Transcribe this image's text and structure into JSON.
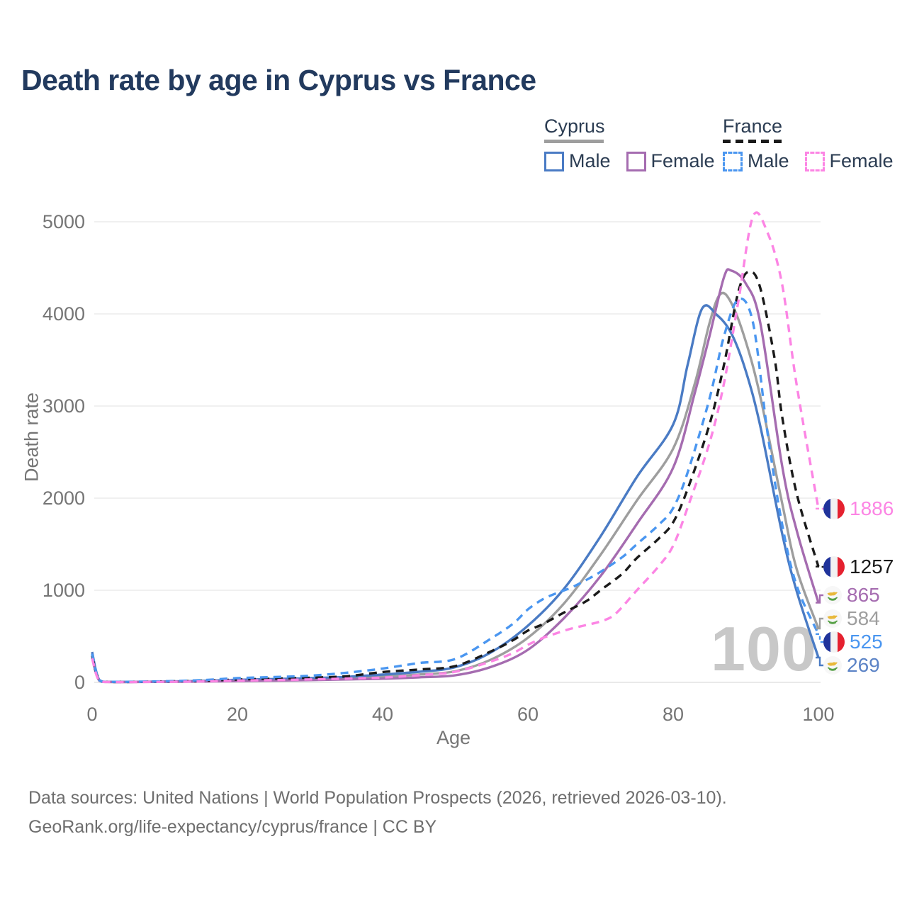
{
  "title": "Death rate by age in Cyprus vs France",
  "watermark": "100",
  "legend": {
    "groups": [
      {
        "label": "Cyprus",
        "underline_color": "#9e9e9e",
        "underline_dashed": false,
        "items": [
          {
            "label": "Male",
            "color": "#4a7bc4",
            "dashed": false
          },
          {
            "label": "Female",
            "color": "#a56cb0",
            "dashed": false
          }
        ]
      },
      {
        "label": "France",
        "underline_color": "#1a1a1a",
        "underline_dashed": true,
        "items": [
          {
            "label": "Male",
            "color": "#4a96f0",
            "dashed": true
          },
          {
            "label": "Female",
            "color": "#fc85e4",
            "dashed": true
          }
        ]
      }
    ]
  },
  "axes": {
    "x": {
      "label": "Age",
      "ticks": [
        0,
        20,
        40,
        60,
        80,
        100
      ],
      "range": [
        0,
        100
      ]
    },
    "y": {
      "label": "Death rate",
      "ticks": [
        0,
        1000,
        2000,
        3000,
        4000,
        5000
      ],
      "range": [
        0,
        5000
      ]
    }
  },
  "end_labels": [
    {
      "value": "1886",
      "flag": "france",
      "color": "#fc85e4",
      "series": "france-female"
    },
    {
      "value": "1257",
      "flag": "france",
      "color": "#1a1a1a",
      "series": "france-both"
    },
    {
      "value": "865",
      "flag": "cyprus",
      "color": "#a56cb0",
      "series": "cyprus-female"
    },
    {
      "value": "584",
      "flag": "cyprus",
      "color": "#9e9e9e",
      "series": "cyprus-both"
    },
    {
      "value": "525",
      "flag": "france",
      "color": "#4a96f0",
      "series": "france-male"
    },
    {
      "value": "269",
      "flag": "cyprus",
      "color": "#5b83c6",
      "series": "cyprus-male"
    }
  ],
  "footer": {
    "line1": "Data sources: United Nations | World Population Prospects (2026, retrieved 2026-03-10).",
    "line2": "GeoRank.org/life-expectancy/cyprus/france | CC BY"
  },
  "chart_data": {
    "type": "line",
    "title": "Death rate by age in Cyprus vs France",
    "xlabel": "Age",
    "ylabel": "Death rate",
    "xlim": [
      0,
      100
    ],
    "ylim": [
      0,
      5000
    ],
    "grid": "horizontal",
    "legend_position": "top-right",
    "series": [
      {
        "name": "Cyprus Both sexes",
        "id": "cyprus-both",
        "color": "#9e9e9e",
        "dashed": false,
        "end_value": 584,
        "points": [
          [
            0,
            300
          ],
          [
            1,
            21
          ],
          [
            3,
            5
          ],
          [
            10,
            8
          ],
          [
            15,
            12
          ],
          [
            20,
            21
          ],
          [
            25,
            28
          ],
          [
            30,
            35
          ],
          [
            35,
            46
          ],
          [
            40,
            62
          ],
          [
            45,
            85
          ],
          [
            50,
            121
          ],
          [
            55,
            250
          ],
          [
            60,
            485
          ],
          [
            65,
            860
          ],
          [
            70,
            1385
          ],
          [
            75,
            1975
          ],
          [
            80,
            2538
          ],
          [
            83,
            3250
          ],
          [
            85,
            3900
          ],
          [
            86.5,
            4215
          ],
          [
            88,
            4120
          ],
          [
            90,
            3700
          ],
          [
            92,
            3100
          ],
          [
            95,
            1946
          ],
          [
            97,
            1230
          ],
          [
            100,
            584
          ]
        ]
      },
      {
        "name": "Cyprus Male",
        "id": "cyprus-male",
        "color": "#4a7bc4",
        "dashed": false,
        "end_value": 269,
        "points": [
          [
            0,
            330
          ],
          [
            1,
            25
          ],
          [
            3,
            6
          ],
          [
            10,
            9
          ],
          [
            15,
            16
          ],
          [
            20,
            28
          ],
          [
            25,
            36
          ],
          [
            30,
            45
          ],
          [
            35,
            60
          ],
          [
            40,
            85
          ],
          [
            45,
            115
          ],
          [
            50,
            165
          ],
          [
            55,
            330
          ],
          [
            60,
            615
          ],
          [
            65,
            1020
          ],
          [
            70,
            1585
          ],
          [
            75,
            2230
          ],
          [
            80,
            2800
          ],
          [
            82,
            3450
          ],
          [
            84,
            4060
          ],
          [
            86,
            3990
          ],
          [
            88,
            3790
          ],
          [
            90,
            3380
          ],
          [
            92,
            2780
          ],
          [
            95,
            1615
          ],
          [
            97,
            990
          ],
          [
            100,
            269
          ]
        ]
      },
      {
        "name": "Cyprus Female",
        "id": "cyprus-female",
        "color": "#a56cb0",
        "dashed": false,
        "end_value": 865,
        "points": [
          [
            0,
            270
          ],
          [
            1,
            18
          ],
          [
            3,
            4
          ],
          [
            10,
            6
          ],
          [
            15,
            9
          ],
          [
            20,
            14
          ],
          [
            25,
            19
          ],
          [
            30,
            25
          ],
          [
            35,
            32
          ],
          [
            40,
            40
          ],
          [
            45,
            55
          ],
          [
            50,
            77
          ],
          [
            55,
            170
          ],
          [
            60,
            354
          ],
          [
            65,
            700
          ],
          [
            70,
            1154
          ],
          [
            75,
            1720
          ],
          [
            80,
            2331
          ],
          [
            83,
            3150
          ],
          [
            85,
            3760
          ],
          [
            87,
            4400
          ],
          [
            88,
            4470
          ],
          [
            90,
            4330
          ],
          [
            92,
            3900
          ],
          [
            95,
            2350
          ],
          [
            97,
            1650
          ],
          [
            100,
            865
          ]
        ]
      },
      {
        "name": "France Both sexes",
        "id": "france-both",
        "color": "#1a1a1a",
        "dashed": true,
        "end_value": 1257,
        "points": [
          [
            0,
            290
          ],
          [
            1,
            20
          ],
          [
            3,
            5
          ],
          [
            10,
            10
          ],
          [
            15,
            17
          ],
          [
            20,
            31
          ],
          [
            25,
            40
          ],
          [
            30,
            51
          ],
          [
            35,
            66
          ],
          [
            40,
            112
          ],
          [
            45,
            140
          ],
          [
            50,
            177
          ],
          [
            55,
            340
          ],
          [
            58,
            460
          ],
          [
            60,
            562
          ],
          [
            62,
            630
          ],
          [
            65,
            760
          ],
          [
            68,
            880
          ],
          [
            70,
            1000
          ],
          [
            73,
            1180
          ],
          [
            75,
            1350
          ],
          [
            78,
            1560
          ],
          [
            80,
            1738
          ],
          [
            82,
            2100
          ],
          [
            85,
            2800
          ],
          [
            87,
            3450
          ],
          [
            89,
            4250
          ],
          [
            90.5,
            4460
          ],
          [
            92,
            4280
          ],
          [
            94,
            3500
          ],
          [
            95,
            2885
          ],
          [
            97,
            2050
          ],
          [
            100,
            1257
          ]
        ]
      },
      {
        "name": "France Male",
        "id": "france-male",
        "color": "#4a96f0",
        "dashed": true,
        "end_value": 525,
        "points": [
          [
            0,
            310
          ],
          [
            1,
            22
          ],
          [
            3,
            6
          ],
          [
            10,
            12
          ],
          [
            15,
            24
          ],
          [
            20,
            46
          ],
          [
            25,
            58
          ],
          [
            30,
            72
          ],
          [
            35,
            105
          ],
          [
            40,
            150
          ],
          [
            45,
            210
          ],
          [
            50,
            254
          ],
          [
            55,
            480
          ],
          [
            58,
            640
          ],
          [
            60,
            792
          ],
          [
            62,
            900
          ],
          [
            64,
            970
          ],
          [
            66,
            1030
          ],
          [
            68,
            1110
          ],
          [
            70,
            1200
          ],
          [
            73,
            1360
          ],
          [
            75,
            1500
          ],
          [
            78,
            1710
          ],
          [
            80,
            1892
          ],
          [
            82,
            2280
          ],
          [
            85,
            3080
          ],
          [
            87,
            3760
          ],
          [
            89,
            4160
          ],
          [
            91,
            3900
          ],
          [
            93,
            2700
          ],
          [
            95,
            1715
          ],
          [
            97,
            1050
          ],
          [
            100,
            525
          ]
        ]
      },
      {
        "name": "France Female",
        "id": "france-female",
        "color": "#fc85e4",
        "dashed": true,
        "end_value": 1886,
        "points": [
          [
            0,
            260
          ],
          [
            1,
            16
          ],
          [
            3,
            4
          ],
          [
            10,
            6
          ],
          [
            15,
            10
          ],
          [
            20,
            19
          ],
          [
            25,
            25
          ],
          [
            30,
            32
          ],
          [
            35,
            41
          ],
          [
            40,
            52
          ],
          [
            45,
            78
          ],
          [
            50,
            115
          ],
          [
            55,
            230
          ],
          [
            58,
            320
          ],
          [
            60,
            408
          ],
          [
            62,
            480
          ],
          [
            64,
            535
          ],
          [
            66,
            585
          ],
          [
            68,
            622
          ],
          [
            70,
            662
          ],
          [
            72,
            740
          ],
          [
            75,
            1000
          ],
          [
            78,
            1260
          ],
          [
            80,
            1485
          ],
          [
            82,
            1900
          ],
          [
            85,
            2600
          ],
          [
            87,
            3250
          ],
          [
            89,
            4150
          ],
          [
            91,
            5060
          ],
          [
            93,
            4880
          ],
          [
            95,
            4320
          ],
          [
            97,
            3230
          ],
          [
            100,
            1886
          ]
        ]
      }
    ]
  }
}
